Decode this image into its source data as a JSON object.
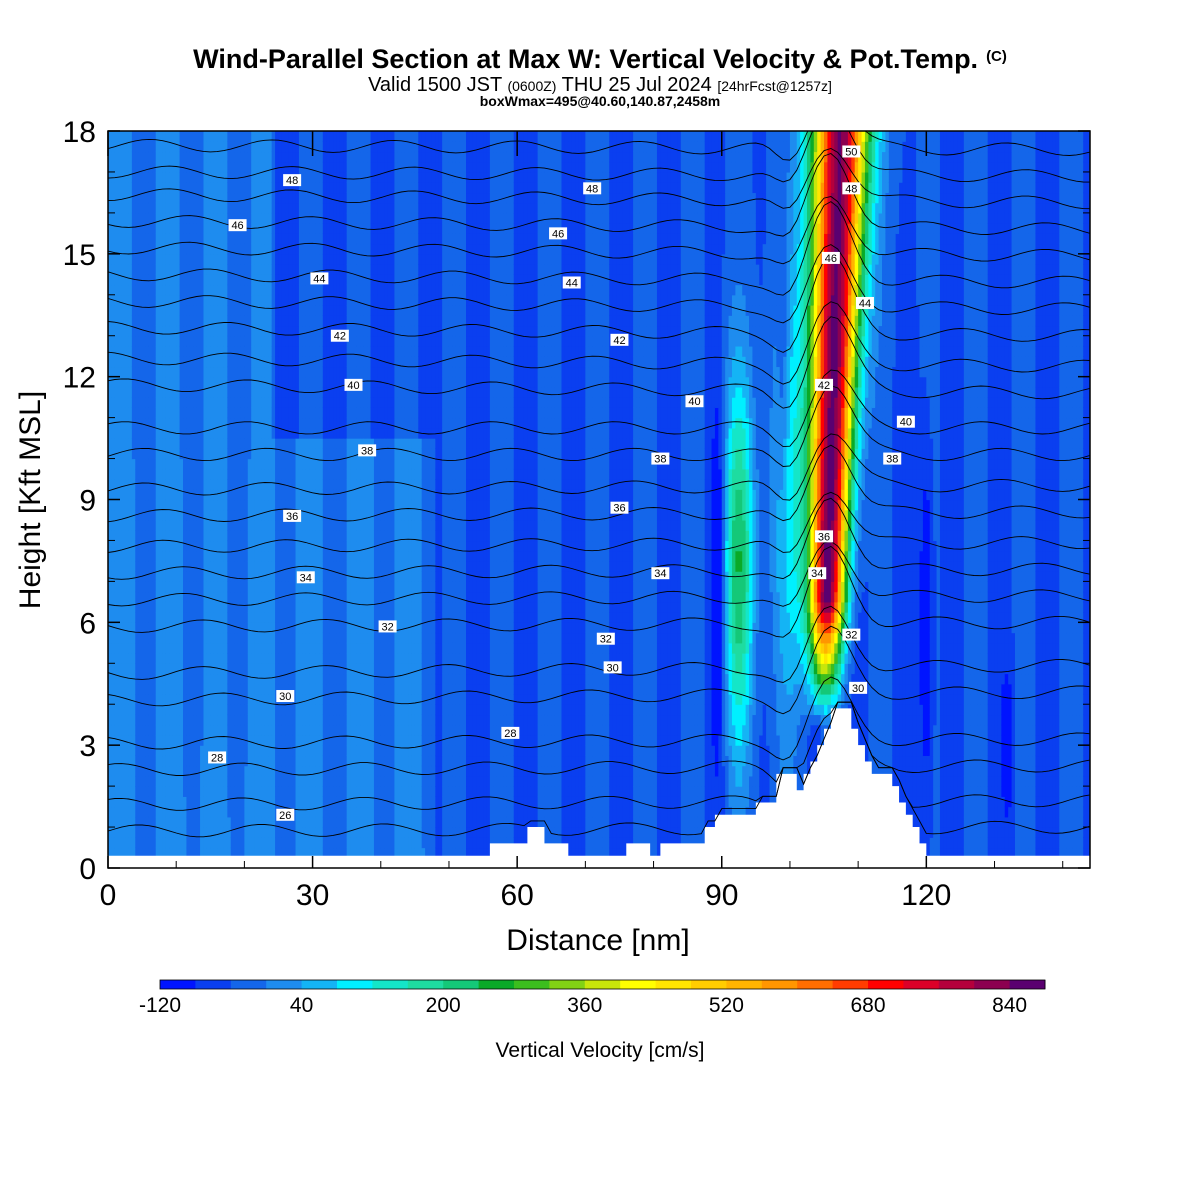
{
  "header": {
    "title": "Wind-Parallel Section at Max W: Vertical Velocity & Pot.Temp.",
    "title_mark": "(C)",
    "valid_a": "Valid 1500 JST ",
    "valid_utc": "(0600Z)",
    "valid_b": " THU 25 Jul 2024 ",
    "forecast": "[24hrFcst@1257z]",
    "box_max": "boxWmax=495@40.60,140.87,2458m"
  },
  "colorbar": {
    "label": "Vertical Velocity [cm/s]",
    "colors": [
      "#0014ff",
      "#0a3ff0",
      "#1466ea",
      "#1e8cef",
      "#14b4f5",
      "#00f0ff",
      "#14e6c8",
      "#1edca0",
      "#14c878",
      "#0aaa28",
      "#3cbe1e",
      "#82d214",
      "#c8e60a",
      "#ffff00",
      "#ffe600",
      "#ffcd00",
      "#ffb400",
      "#ff9600",
      "#ff6e00",
      "#ff3c00",
      "#ff0000",
      "#dc0028",
      "#b4003c",
      "#8c0050",
      "#5a0070"
    ],
    "tick_labels": [
      "-120",
      "40",
      "200",
      "360",
      "520",
      "680",
      "840"
    ]
  },
  "chart_data": {
    "type": "heatmap",
    "title": "Wind-Parallel Section at Max W: Vertical Velocity & Pot.Temp.",
    "xlabel": "Distance [nm]",
    "ylabel": "Height [Kft MSL]",
    "xlim": [
      0,
      144
    ],
    "ylim": [
      0,
      18
    ],
    "x_ticks": [
      0,
      30,
      60,
      90,
      120
    ],
    "y_ticks": [
      0,
      3,
      6,
      9,
      12,
      15,
      18
    ],
    "filled_field": {
      "name": "Vertical Velocity [cm/s]",
      "levels_min": -120,
      "levels_step": 40,
      "features": [
        {
          "kind": "background",
          "w": -40
        },
        {
          "kind": "band",
          "x": [
            0,
            45
          ],
          "y": [
            0,
            11
          ],
          "w": 0
        },
        {
          "kind": "band",
          "x": [
            0,
            25
          ],
          "y": [
            10,
            18
          ],
          "w": 0
        },
        {
          "kind": "updraft",
          "x": 106,
          "y_top": 18,
          "w_max": 840
        },
        {
          "kind": "updraft",
          "x": 93,
          "y_top": 13,
          "w_max": 240
        },
        {
          "kind": "downdraft",
          "x": 90,
          "y": [
            3,
            10
          ],
          "w_min": -120
        },
        {
          "kind": "downdraft",
          "x": 120,
          "y": [
            1,
            8
          ],
          "w_min": -120
        }
      ]
    },
    "terrain_heights": [
      {
        "x": 0,
        "y": 0.3
      },
      {
        "x": 55,
        "y": 0.3
      },
      {
        "x": 56,
        "y": 0.6
      },
      {
        "x": 60,
        "y": 0.6
      },
      {
        "x": 61.5,
        "y": 1.0
      },
      {
        "x": 63.5,
        "y": 1.0
      },
      {
        "x": 64,
        "y": 0.6
      },
      {
        "x": 67,
        "y": 0.6
      },
      {
        "x": 67.5,
        "y": 0.3
      },
      {
        "x": 75,
        "y": 0.3
      },
      {
        "x": 76,
        "y": 0.6
      },
      {
        "x": 79,
        "y": 0.6
      },
      {
        "x": 79.5,
        "y": 0.3
      },
      {
        "x": 80.5,
        "y": 0.3
      },
      {
        "x": 81,
        "y": 0.6
      },
      {
        "x": 86,
        "y": 0.6
      },
      {
        "x": 87.5,
        "y": 1.0
      },
      {
        "x": 89,
        "y": 1.3
      },
      {
        "x": 94,
        "y": 1.3
      },
      {
        "x": 95,
        "y": 1.6
      },
      {
        "x": 97,
        "y": 1.6
      },
      {
        "x": 98,
        "y": 2.3
      },
      {
        "x": 100,
        "y": 2.3
      },
      {
        "x": 101,
        "y": 1.9
      },
      {
        "x": 102,
        "y": 2.3
      },
      {
        "x": 103,
        "y": 2.6
      },
      {
        "x": 104,
        "y": 3.0
      },
      {
        "x": 105,
        "y": 3.4
      },
      {
        "x": 106,
        "y": 3.9
      },
      {
        "x": 108,
        "y": 3.9
      },
      {
        "x": 109,
        "y": 3.4
      },
      {
        "x": 110,
        "y": 3.0
      },
      {
        "x": 111,
        "y": 2.6
      },
      {
        "x": 112,
        "y": 2.3
      },
      {
        "x": 115,
        "y": 2.0
      },
      {
        "x": 116,
        "y": 1.6
      },
      {
        "x": 117,
        "y": 1.3
      },
      {
        "x": 118,
        "y": 1.0
      },
      {
        "x": 119,
        "y": 0.6
      },
      {
        "x": 120,
        "y": 0.3
      },
      {
        "x": 144,
        "y": 0.3
      }
    ],
    "contours": {
      "name": "Pot.Temp. (C)",
      "isolines": [
        {
          "theta": 26,
          "y_left": 0.9,
          "y_right": 1.0
        },
        {
          "theta": 28,
          "y_left": 2.4,
          "y_right": 2.5
        },
        {
          "theta": 30,
          "y_left": 4.1,
          "y_right": 4.3
        },
        {
          "theta": 32,
          "y_left": 5.9,
          "y_right": 6.0
        },
        {
          "theta": 34,
          "y_left": 7.2,
          "y_right": 7.3
        },
        {
          "theta": 36,
          "y_left": 8.6,
          "y_right": 8.7
        },
        {
          "theta": 38,
          "y_left": 10.1,
          "y_right": 10.1
        },
        {
          "theta": 40,
          "y_left": 11.8,
          "y_right": 11.6
        },
        {
          "theta": 42,
          "y_left": 13.2,
          "y_right": 13.0
        },
        {
          "theta": 44,
          "y_left": 14.5,
          "y_right": 14.3
        },
        {
          "theta": 46,
          "y_left": 15.8,
          "y_right": 15.6
        },
        {
          "theta": 48,
          "y_left": 17.0,
          "y_right": 16.9
        }
      ],
      "labels": [
        {
          "text": "48",
          "x": 27,
          "y": 16.8
        },
        {
          "text": "48",
          "x": 71,
          "y": 16.6
        },
        {
          "text": "50",
          "x": 109,
          "y": 17.5
        },
        {
          "text": "48",
          "x": 109,
          "y": 16.6
        },
        {
          "text": "46",
          "x": 19,
          "y": 15.7
        },
        {
          "text": "46",
          "x": 66,
          "y": 15.5
        },
        {
          "text": "46",
          "x": 106,
          "y": 14.9
        },
        {
          "text": "44",
          "x": 31,
          "y": 14.4
        },
        {
          "text": "44",
          "x": 68,
          "y": 14.3
        },
        {
          "text": "44",
          "x": 111,
          "y": 13.8
        },
        {
          "text": "42",
          "x": 34,
          "y": 13.0
        },
        {
          "text": "42",
          "x": 75,
          "y": 12.9
        },
        {
          "text": "42",
          "x": 105,
          "y": 11.8
        },
        {
          "text": "40",
          "x": 36,
          "y": 11.8
        },
        {
          "text": "40",
          "x": 86,
          "y": 11.4
        },
        {
          "text": "40",
          "x": 117,
          "y": 10.9
        },
        {
          "text": "38",
          "x": 38,
          "y": 10.2
        },
        {
          "text": "38",
          "x": 81,
          "y": 10.0
        },
        {
          "text": "38",
          "x": 115,
          "y": 10.0
        },
        {
          "text": "36",
          "x": 27,
          "y": 8.6
        },
        {
          "text": "36",
          "x": 75,
          "y": 8.8
        },
        {
          "text": "36",
          "x": 105,
          "y": 8.1
        },
        {
          "text": "34",
          "x": 29,
          "y": 7.1
        },
        {
          "text": "34",
          "x": 81,
          "y": 7.2
        },
        {
          "text": "34",
          "x": 104,
          "y": 7.2
        },
        {
          "text": "32",
          "x": 41,
          "y": 5.9
        },
        {
          "text": "32",
          "x": 73,
          "y": 5.6
        },
        {
          "text": "32",
          "x": 109,
          "y": 5.7
        },
        {
          "text": "30",
          "x": 26,
          "y": 4.2
        },
        {
          "text": "30",
          "x": 74,
          "y": 4.9
        },
        {
          "text": "30",
          "x": 110,
          "y": 4.4
        },
        {
          "text": "28",
          "x": 16,
          "y": 2.7
        },
        {
          "text": "28",
          "x": 59,
          "y": 3.3
        },
        {
          "text": "26",
          "x": 26,
          "y": 1.3
        }
      ]
    }
  }
}
